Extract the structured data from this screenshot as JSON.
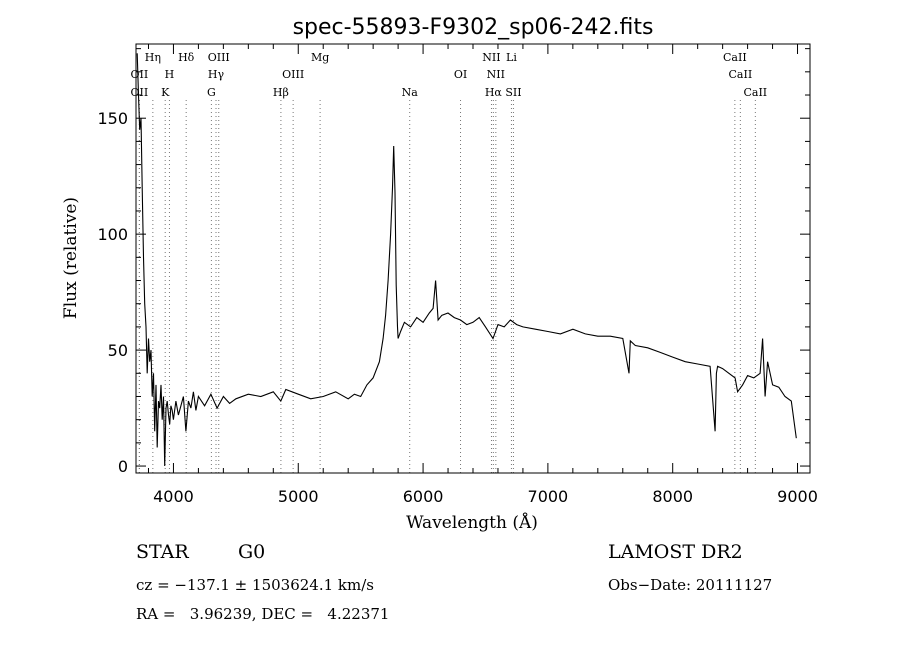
{
  "chart_data": {
    "type": "line",
    "title": "spec-55893-F9302_sp06-242.fits",
    "xlabel": "Wavelength (Å)",
    "ylabel": "Flux (relative)",
    "xlim": [
      3700,
      9100
    ],
    "ylim": [
      -3,
      182
    ],
    "x_ticks": [
      4000,
      5000,
      6000,
      7000,
      8000,
      9000
    ],
    "y_ticks": [
      0,
      50,
      100,
      150
    ],
    "grid": false,
    "series": [
      {
        "name": "",
        "x": [
          3710,
          3720,
          3730,
          3740,
          3750,
          3760,
          3770,
          3780,
          3790,
          3800,
          3810,
          3820,
          3830,
          3840,
          3850,
          3860,
          3870,
          3880,
          3890,
          3900,
          3910,
          3920,
          3930,
          3940,
          3950,
          3960,
          3970,
          3980,
          3990,
          4000,
          4020,
          4040,
          4060,
          4080,
          4100,
          4120,
          4140,
          4160,
          4180,
          4200,
          4250,
          4300,
          4350,
          4400,
          4450,
          4500,
          4600,
          4700,
          4800,
          4860,
          4900,
          5000,
          5100,
          5200,
          5300,
          5400,
          5450,
          5500,
          5550,
          5600,
          5650,
          5680,
          5700,
          5720,
          5740,
          5755,
          5765,
          5775,
          5785,
          5795,
          5800,
          5820,
          5850,
          5900,
          5950,
          6000,
          6050,
          6080,
          6100,
          6120,
          6150,
          6200,
          6250,
          6300,
          6350,
          6400,
          6450,
          6500,
          6560,
          6600,
          6650,
          6700,
          6750,
          6800,
          6900,
          7000,
          7100,
          7200,
          7300,
          7400,
          7500,
          7600,
          7650,
          7660,
          7700,
          7800,
          7900,
          8000,
          8100,
          8200,
          8300,
          8340,
          8350,
          8360,
          8400,
          8450,
          8500,
          8520,
          8560,
          8600,
          8650,
          8700,
          8720,
          8740,
          8760,
          8800,
          8850,
          8900,
          8950,
          8990
        ],
        "y": [
          178,
          160,
          145,
          150,
          120,
          90,
          70,
          60,
          40,
          55,
          45,
          50,
          30,
          40,
          15,
          35,
          8,
          28,
          25,
          35,
          20,
          30,
          0,
          25,
          28,
          22,
          18,
          26,
          24,
          20,
          28,
          22,
          26,
          30,
          15,
          28,
          25,
          32,
          24,
          30,
          26,
          31,
          25,
          30,
          27,
          29,
          31,
          30,
          32,
          28,
          33,
          31,
          29,
          30,
          32,
          29,
          31,
          30,
          35,
          38,
          45,
          55,
          65,
          80,
          100,
          120,
          138,
          118,
          78,
          60,
          55,
          58,
          62,
          60,
          64,
          62,
          66,
          68,
          80,
          63,
          65,
          66,
          64,
          63,
          61,
          62,
          64,
          60,
          55,
          61,
          60,
          63,
          61,
          60,
          59,
          58,
          57,
          59,
          57,
          56,
          56,
          55,
          40,
          54,
          52,
          51,
          49,
          47,
          45,
          44,
          43,
          15,
          40,
          43,
          42,
          40,
          38,
          32,
          35,
          39,
          38,
          40,
          55,
          30,
          45,
          35,
          34,
          30,
          28,
          12
        ]
      }
    ],
    "line_markers": [
      {
        "label": "OII",
        "wavelength": 3727,
        "row": 2
      },
      {
        "label": "Hη",
        "wavelength": 3835,
        "row": 1
      },
      {
        "label": "OII",
        "wavelength": 3727,
        "row": 3
      },
      {
        "label": "H",
        "wavelength": 3968,
        "row": 2
      },
      {
        "label": "K",
        "wavelength": 3934,
        "row": 3
      },
      {
        "label": "Hδ",
        "wavelength": 4102,
        "row": 1
      },
      {
        "label": "G",
        "wavelength": 4304,
        "row": 3
      },
      {
        "label": "Hγ",
        "wavelength": 4341,
        "row": 2
      },
      {
        "label": "OIII",
        "wavelength": 4363,
        "row": 1
      },
      {
        "label": "Hβ",
        "wavelength": 4861,
        "row": 3
      },
      {
        "label": "OIII",
        "wavelength": 4959,
        "row": 2
      },
      {
        "label": "Mg",
        "wavelength": 5175,
        "row": 1
      },
      {
        "label": "Na",
        "wavelength": 5893,
        "row": 3
      },
      {
        "label": "OI",
        "wavelength": 6300,
        "row": 2
      },
      {
        "label": "NII",
        "wavelength": 6548,
        "row": 1
      },
      {
        "label": "NII",
        "wavelength": 6583,
        "row": 2
      },
      {
        "label": "Hα",
        "wavelength": 6563,
        "row": 3
      },
      {
        "label": "Li",
        "wavelength": 6708,
        "row": 1
      },
      {
        "label": "SII",
        "wavelength": 6724,
        "row": 3
      },
      {
        "label": "CaII",
        "wavelength": 8498,
        "row": 1
      },
      {
        "label": "CaII",
        "wavelength": 8542,
        "row": 2
      },
      {
        "label": "CaII",
        "wavelength": 8662,
        "row": 3
      }
    ]
  },
  "info": {
    "class": "STAR",
    "subclass": "G0",
    "survey": "LAMOST DR2",
    "cz_line": "cz = −137.1 ± 1503624.1 km/s",
    "obs_date_line": "Obs−Date: 20111127",
    "radec_line": "RA =   3.96239, DEC =   4.22371"
  }
}
